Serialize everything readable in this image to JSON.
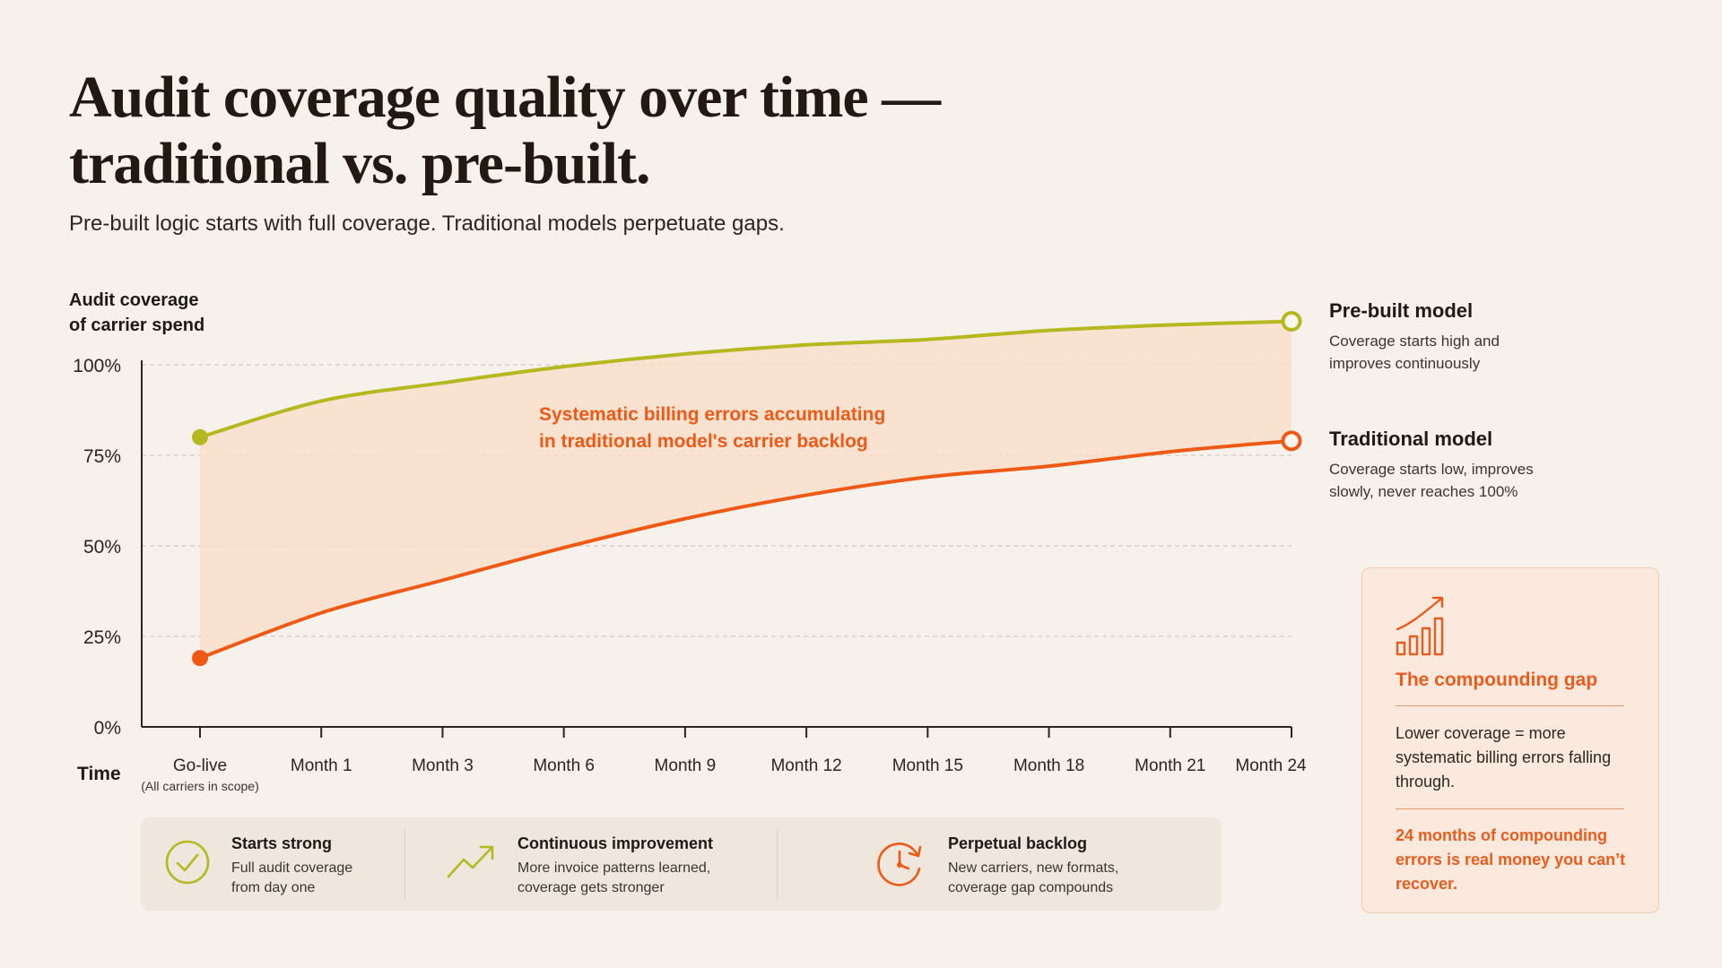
{
  "header": {
    "title_line1": "Audit coverage quality over time —",
    "title_line2": "traditional vs. pre-built.",
    "subtitle": "Pre-built logic starts with full coverage. Traditional models perpetuate gaps."
  },
  "colors": {
    "prebuilt": "#b5b81f",
    "traditional": "#ee5a16",
    "gap_fill": "#fbdcc8",
    "accent": "#e85d1e",
    "background": "#f6f1ea"
  },
  "chart_data": {
    "type": "line",
    "ylabel_line1": "Audit coverage",
    "ylabel_line2": "of carrier spend",
    "xlabel": "Time",
    "ylim": [
      0,
      100
    ],
    "y_ticks": [
      "0%",
      "25%",
      "50%",
      "75%",
      "100%"
    ],
    "grid": "horizontal dashed",
    "categories": [
      "Go-live",
      "Month 1",
      "Month 3",
      "Month 6",
      "Month 9",
      "Month 12",
      "Month 15",
      "Month 18",
      "Month 21",
      "Month 24"
    ],
    "first_category_note": "(All carriers in scope)",
    "series": [
      {
        "name": "Pre-built model",
        "values": [
          80,
          90,
          95,
          99.5,
          103,
          105.5,
          107,
          109.5,
          111,
          112
        ]
      },
      {
        "name": "Traditional model",
        "values": [
          19,
          31.5,
          40.5,
          49.5,
          57.5,
          64,
          69,
          72,
          76,
          79
        ]
      }
    ],
    "annotation_line1": "Systematic billing errors accumulating",
    "annotation_line2": "in traditional model's carrier backlog"
  },
  "legend": {
    "prebuilt": {
      "title": "Pre-built model",
      "desc": "Coverage starts high and improves continuously"
    },
    "traditional": {
      "title": "Traditional model",
      "desc": "Coverage starts low, improves slowly, never reaches 100%"
    }
  },
  "callout": {
    "icon": "bar-chart-trend-up-icon",
    "title": "The compounding gap",
    "text": "Lower coverage = more systematic billing errors falling through.",
    "emphasis": "24 months of compounding errors is real money you can’t recover."
  },
  "features": [
    {
      "icon": "check-circle-icon",
      "title": "Starts strong",
      "desc_line1": "Full audit coverage",
      "desc_line2": "from day one"
    },
    {
      "icon": "trend-up-icon",
      "title": "Continuous improvement",
      "desc_line1": "More invoice patterns learned,",
      "desc_line2": "coverage gets stronger"
    },
    {
      "icon": "clock-backlog-icon",
      "title": "Perpetual backlog",
      "desc_line1": "New carriers, new formats,",
      "desc_line2": "coverage gap compounds"
    }
  ]
}
